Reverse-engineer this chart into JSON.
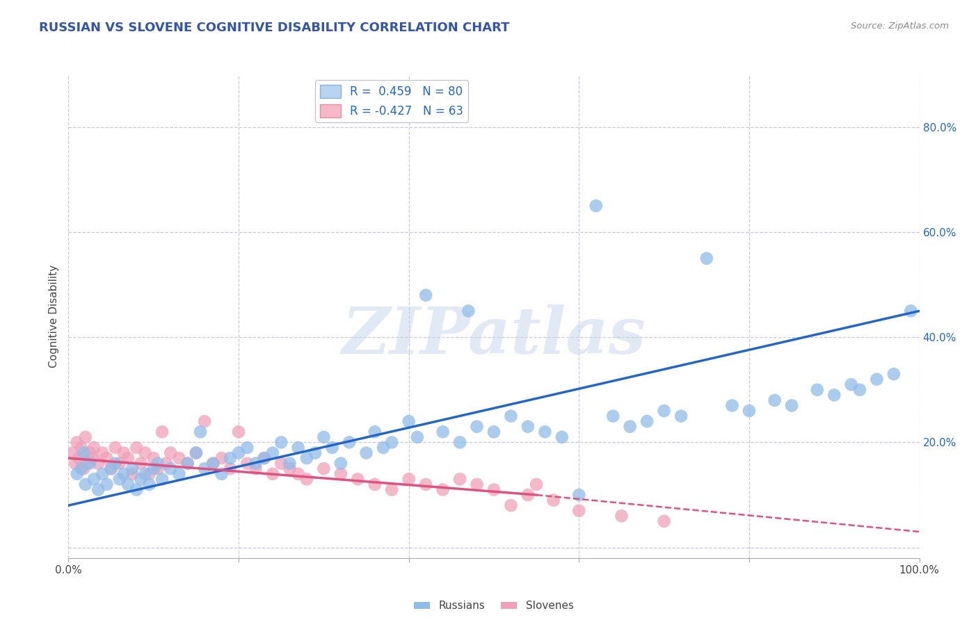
{
  "title": "RUSSIAN VS SLOVENE COGNITIVE DISABILITY CORRELATION CHART",
  "source": "Source: ZipAtlas.com",
  "ylabel": "Cognitive Disability",
  "xlim": [
    0,
    100
  ],
  "ylim": [
    -2,
    90
  ],
  "xticks": [
    0,
    20,
    40,
    60,
    80,
    100
  ],
  "xticklabels": [
    "0.0%",
    "",
    "",
    "",
    "",
    "100.0%"
  ],
  "yticks": [
    0,
    20,
    40,
    60,
    80
  ],
  "left_yticklabels": [
    "",
    "",
    "",
    "",
    ""
  ],
  "right_yticklabels": [
    "",
    "20.0%",
    "40.0%",
    "60.0%",
    "80.0%"
  ],
  "title_color": "#3355aa",
  "title_fontsize": 13,
  "watermark": "ZIPatlas",
  "blue_color": "#90bce8",
  "pink_color": "#f0a0b8",
  "blue_line_color": "#2266cc",
  "pink_line_color": "#e05080",
  "grid_color": "#c8c8d8",
  "bg_color": "#ffffff",
  "blue_line_x0": 0,
  "blue_line_y0": 8,
  "blue_line_x1": 100,
  "blue_line_y1": 45,
  "pink_line_x0": 0,
  "pink_line_y0": 17,
  "pink_line_x1": 55,
  "pink_line_y1": 10,
  "pink_dash_x0": 55,
  "pink_dash_y0": 10,
  "pink_dash_x1": 100,
  "pink_dash_y1": 3,
  "russian_x": [
    1.0,
    1.5,
    2.0,
    2.5,
    1.8,
    3.0,
    3.5,
    4.0,
    4.5,
    5.0,
    5.5,
    6.0,
    6.5,
    7.0,
    7.5,
    8.0,
    8.5,
    9.0,
    9.5,
    10.0,
    10.5,
    11.0,
    12.0,
    13.0,
    14.0,
    15.0,
    15.5,
    16.0,
    17.0,
    18.0,
    19.0,
    20.0,
    21.0,
    22.0,
    23.0,
    24.0,
    25.0,
    26.0,
    27.0,
    28.0,
    29.0,
    30.0,
    31.0,
    32.0,
    33.0,
    35.0,
    36.0,
    37.0,
    38.0,
    40.0,
    41.0,
    42.0,
    44.0,
    46.0,
    47.0,
    48.0,
    50.0,
    52.0,
    54.0,
    56.0,
    58.0,
    60.0,
    62.0,
    64.0,
    66.0,
    68.0,
    70.0,
    72.0,
    75.0,
    78.0,
    80.0,
    83.0,
    85.0,
    88.0,
    90.0,
    92.0,
    93.0,
    95.0,
    97.0,
    99.0
  ],
  "russian_y": [
    14.0,
    15.0,
    12.0,
    16.0,
    18.0,
    13.0,
    11.0,
    14.0,
    12.0,
    15.0,
    16.0,
    13.0,
    14.0,
    12.0,
    15.0,
    11.0,
    13.0,
    14.0,
    12.0,
    15.0,
    16.0,
    13.0,
    15.0,
    14.0,
    16.0,
    18.0,
    22.0,
    15.0,
    16.0,
    14.0,
    17.0,
    18.0,
    19.0,
    16.0,
    17.0,
    18.0,
    20.0,
    16.0,
    19.0,
    17.0,
    18.0,
    21.0,
    19.0,
    16.0,
    20.0,
    18.0,
    22.0,
    19.0,
    20.0,
    24.0,
    21.0,
    48.0,
    22.0,
    20.0,
    45.0,
    23.0,
    22.0,
    25.0,
    23.0,
    22.0,
    21.0,
    10.0,
    65.0,
    25.0,
    23.0,
    24.0,
    26.0,
    25.0,
    55.0,
    27.0,
    26.0,
    28.0,
    27.0,
    30.0,
    29.0,
    31.0,
    30.0,
    32.0,
    33.0,
    45.0
  ],
  "slovene_x": [
    0.5,
    0.8,
    1.0,
    1.2,
    1.5,
    1.8,
    2.0,
    2.2,
    2.5,
    2.8,
    3.0,
    3.5,
    4.0,
    4.5,
    5.0,
    5.5,
    6.0,
    6.5,
    7.0,
    7.5,
    8.0,
    8.5,
    9.0,
    9.5,
    10.0,
    10.5,
    11.0,
    11.5,
    12.0,
    13.0,
    14.0,
    15.0,
    16.0,
    17.0,
    18.0,
    19.0,
    20.0,
    21.0,
    22.0,
    23.0,
    24.0,
    25.0,
    26.0,
    27.0,
    28.0,
    30.0,
    32.0,
    34.0,
    36.0,
    38.0,
    40.0,
    42.0,
    44.0,
    46.0,
    48.0,
    50.0,
    52.0,
    54.0,
    55.0,
    57.0,
    60.0,
    65.0,
    70.0
  ],
  "slovene_y": [
    18.0,
    16.0,
    20.0,
    17.0,
    19.0,
    15.0,
    21.0,
    16.0,
    18.0,
    17.0,
    19.0,
    16.0,
    18.0,
    17.0,
    15.0,
    19.0,
    16.0,
    18.0,
    17.0,
    14.0,
    19.0,
    16.0,
    18.0,
    14.0,
    17.0,
    15.0,
    22.0,
    16.0,
    18.0,
    17.0,
    16.0,
    18.0,
    24.0,
    16.0,
    17.0,
    15.0,
    22.0,
    16.0,
    15.0,
    17.0,
    14.0,
    16.0,
    15.0,
    14.0,
    13.0,
    15.0,
    14.0,
    13.0,
    12.0,
    11.0,
    13.0,
    12.0,
    11.0,
    13.0,
    12.0,
    11.0,
    8.0,
    10.0,
    12.0,
    9.0,
    7.0,
    6.0,
    5.0
  ]
}
